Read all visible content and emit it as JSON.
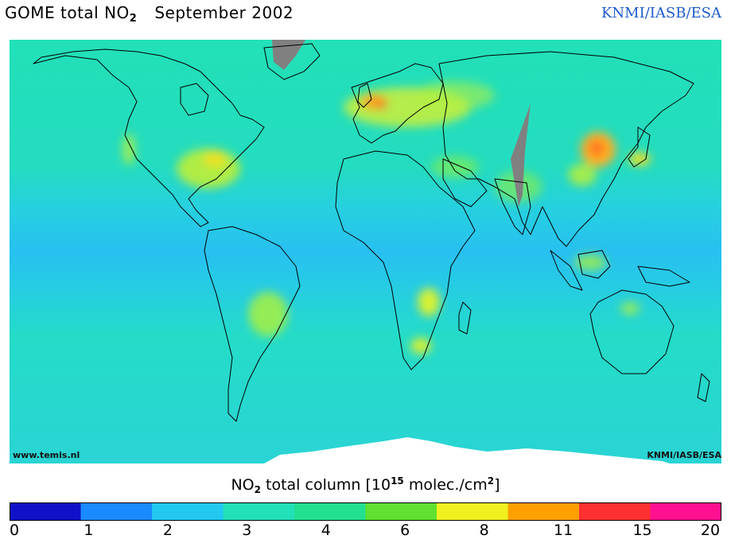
{
  "header": {
    "title_prefix": "GOME total NO",
    "title_sub": "2",
    "title_date": "September 2002",
    "credit": "KNMI/IASB/ESA"
  },
  "map": {
    "source_label": "www.temis.nl",
    "credit_label": "KNMI/IASB/ESA",
    "colors": {
      "ocean_background": "#22e0b8",
      "tropical_band": "#27c8e8",
      "missing_data": "#808080",
      "no_data_polar": "#ffffff",
      "coastline": "#000000"
    }
  },
  "colorbar": {
    "label_prefix": "NO",
    "label_sub": "2",
    "label_middle": " total column [10",
    "label_sup1": "15",
    "label_middle2": " molec./cm",
    "label_sup2": "2",
    "label_suffix": "]",
    "ticks": [
      "0",
      "1",
      "2",
      "3",
      "4",
      "6",
      "8",
      "11",
      "15",
      "20"
    ],
    "stops": [
      "#1010c8",
      "#1a8aff",
      "#22c8f0",
      "#22e0b8",
      "#22e090",
      "#60e030",
      "#f0f020",
      "#ffa000",
      "#ff3030",
      "#ff1090"
    ]
  }
}
